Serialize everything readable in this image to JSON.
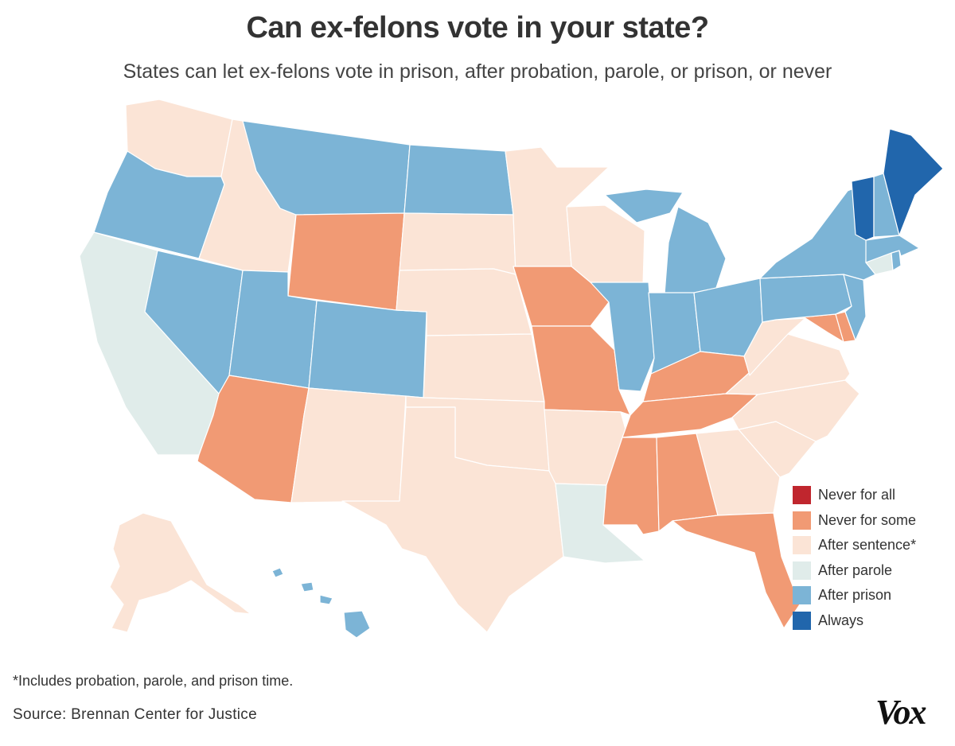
{
  "title": "Can ex-felons vote in your state?",
  "subtitle": "States can let ex-felons vote in prison, after probation, parole, or prison, or never",
  "legend": [
    {
      "key": "never_all",
      "label": "Never for all",
      "color": "#c0262e"
    },
    {
      "key": "never_some",
      "label": "Never for some",
      "color": "#f19a74"
    },
    {
      "key": "after_sentence",
      "label": "After sentence*",
      "color": "#fbe4d6"
    },
    {
      "key": "after_parole",
      "label": "After parole",
      "color": "#e0ecea"
    },
    {
      "key": "after_prison",
      "label": "After prison",
      "color": "#7cb4d6"
    },
    {
      "key": "always",
      "label": "Always",
      "color": "#2166ac"
    }
  ],
  "states": {
    "WA": "after_sentence",
    "OR": "after_prison",
    "CA": "after_parole",
    "NV": "after_prison",
    "ID": "after_sentence",
    "MT": "after_prison",
    "WY": "never_some",
    "UT": "after_prison",
    "AZ": "never_some",
    "CO": "after_prison",
    "NM": "after_sentence",
    "ND": "after_prison",
    "SD": "after_sentence",
    "NE": "after_sentence",
    "KS": "after_sentence",
    "OK": "after_sentence",
    "TX": "after_sentence",
    "MN": "after_sentence",
    "IA": "never_some",
    "MO": "never_some",
    "AR": "after_sentence",
    "LA": "after_parole",
    "WI": "after_sentence",
    "IL": "after_prison",
    "MI": "after_prison",
    "IN": "after_prison",
    "OH": "after_prison",
    "KY": "never_some",
    "TN": "never_some",
    "MS": "never_some",
    "AL": "never_some",
    "GA": "after_sentence",
    "FL": "never_some",
    "SC": "after_sentence",
    "NC": "after_sentence",
    "VA": "after_sentence",
    "WV": "after_sentence",
    "MD": "never_some",
    "DE": "never_some",
    "PA": "after_prison",
    "NJ": "after_prison",
    "NY": "after_prison",
    "CT": "after_parole",
    "RI": "after_prison",
    "MA": "after_prison",
    "VT": "always",
    "NH": "after_prison",
    "ME": "always",
    "AK": "after_sentence",
    "HI": "after_prison"
  },
  "footnote": "*Includes probation, parole, and prison time.",
  "source": "Source: Brennan Center for Justice",
  "logo": "Vox"
}
